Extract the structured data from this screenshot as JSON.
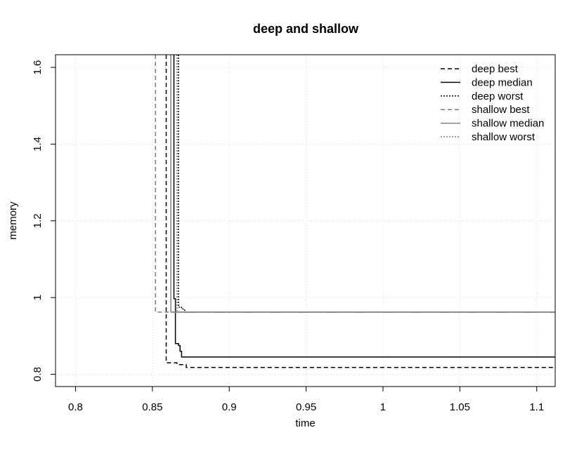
{
  "chart_data": {
    "type": "line",
    "title": "deep and shallow",
    "xlabel": "time",
    "ylabel": "memory",
    "xlim": [
      0.787,
      1.112
    ],
    "ylim": [
      0.768,
      1.633
    ],
    "x_ticks": [
      {
        "value": 0.8,
        "label": "0.8"
      },
      {
        "value": 0.85,
        "label": "0.85"
      },
      {
        "value": 0.9,
        "label": "0.9"
      },
      {
        "value": 0.95,
        "label": "0.95"
      },
      {
        "value": 1.0,
        "label": "1"
      },
      {
        "value": 1.05,
        "label": "1.05"
      },
      {
        "value": 1.1,
        "label": "1.1"
      }
    ],
    "y_ticks": [
      {
        "value": 0.8,
        "label": "0.8"
      },
      {
        "value": 1.0,
        "label": "1"
      },
      {
        "value": 1.2,
        "label": "1.2"
      },
      {
        "value": 1.4,
        "label": "1.4"
      },
      {
        "value": 1.6,
        "label": "1.6"
      }
    ],
    "grid": true,
    "legend_position": "top-right",
    "series": [
      {
        "name": "deep best",
        "color": "#000000",
        "dash": "dashed",
        "x": [
          0.859,
          0.859,
          0.866,
          0.866,
          0.872,
          0.872,
          1.112
        ],
        "y": [
          1.633,
          0.83,
          0.83,
          0.825,
          0.825,
          0.818,
          0.818
        ]
      },
      {
        "name": "deep median",
        "color": "#000000",
        "dash": "solid",
        "x": [
          0.864,
          0.864,
          0.865,
          0.865,
          0.867,
          0.867,
          0.868,
          0.868,
          0.869,
          0.869,
          1.112
        ],
        "y": [
          1.633,
          0.997,
          0.997,
          0.88,
          0.88,
          0.875,
          0.875,
          0.86,
          0.86,
          0.845,
          0.845
        ]
      },
      {
        "name": "deep worst",
        "color": "#000000",
        "dash": "dotted",
        "x": [
          0.867,
          0.867,
          0.869,
          0.869,
          0.871,
          0.871,
          1.112
        ],
        "y": [
          1.633,
          0.975,
          0.975,
          0.97,
          0.97,
          0.962,
          0.962
        ]
      },
      {
        "name": "shallow best",
        "color": "#7f7f7f",
        "dash": "dashed",
        "x": [
          0.852,
          0.852,
          1.112
        ],
        "y": [
          1.633,
          0.962,
          0.962
        ]
      },
      {
        "name": "shallow median",
        "color": "#7f7f7f",
        "dash": "solid",
        "x": [
          0.862,
          0.862,
          1.112
        ],
        "y": [
          1.633,
          0.962,
          0.962
        ]
      },
      {
        "name": "shallow worst",
        "color": "#7f7f7f",
        "dash": "dotted",
        "x": [
          0.866,
          0.866,
          1.112
        ],
        "y": [
          1.633,
          0.962,
          0.962
        ]
      }
    ]
  }
}
